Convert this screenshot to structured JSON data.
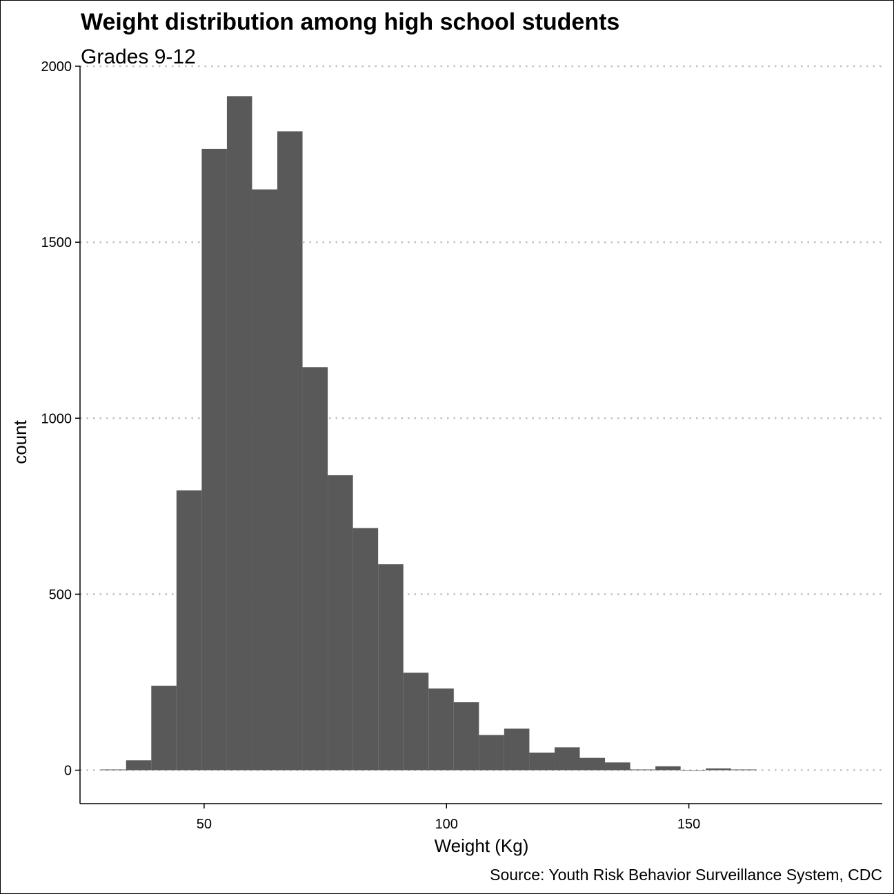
{
  "chart_data": {
    "type": "bar",
    "title": "Weight distribution among high school students",
    "subtitle": "Grades 9-12",
    "xlabel": "Weight (Kg)",
    "ylabel": "count",
    "caption": "Source: Youth Risk Behavior Surveillance System, CDC",
    "xlim": [
      24.4,
      189.9
    ],
    "ylim": [
      -95,
      2000
    ],
    "x_ticks": [
      50,
      100,
      150
    ],
    "y_ticks": [
      0,
      500,
      1000,
      1500,
      2000
    ],
    "grid": "horizontal-dotted",
    "bin_width": 5.2,
    "bins": [
      {
        "x0": 28.7,
        "x1": 33.9,
        "count": 2
      },
      {
        "x0": 33.9,
        "x1": 39.1,
        "count": 28
      },
      {
        "x0": 39.1,
        "x1": 44.3,
        "count": 240
      },
      {
        "x0": 44.3,
        "x1": 49.5,
        "count": 795
      },
      {
        "x0": 49.5,
        "x1": 54.7,
        "count": 1765
      },
      {
        "x0": 54.7,
        "x1": 59.9,
        "count": 1915
      },
      {
        "x0": 59.9,
        "x1": 65.1,
        "count": 1650
      },
      {
        "x0": 65.1,
        "x1": 70.3,
        "count": 1815
      },
      {
        "x0": 70.3,
        "x1": 75.5,
        "count": 1145
      },
      {
        "x0": 75.5,
        "x1": 80.7,
        "count": 838
      },
      {
        "x0": 80.7,
        "x1": 85.9,
        "count": 688
      },
      {
        "x0": 85.9,
        "x1": 91.1,
        "count": 585
      },
      {
        "x0": 91.1,
        "x1": 96.3,
        "count": 277
      },
      {
        "x0": 96.3,
        "x1": 101.5,
        "count": 232
      },
      {
        "x0": 101.5,
        "x1": 106.7,
        "count": 193
      },
      {
        "x0": 106.7,
        "x1": 111.9,
        "count": 100
      },
      {
        "x0": 111.9,
        "x1": 117.1,
        "count": 118
      },
      {
        "x0": 117.1,
        "x1": 122.3,
        "count": 50
      },
      {
        "x0": 122.3,
        "x1": 127.5,
        "count": 65
      },
      {
        "x0": 127.5,
        "x1": 132.7,
        "count": 35
      },
      {
        "x0": 132.7,
        "x1": 137.9,
        "count": 22
      },
      {
        "x0": 137.9,
        "x1": 143.1,
        "count": 2
      },
      {
        "x0": 143.1,
        "x1": 148.3,
        "count": 11
      },
      {
        "x0": 148.3,
        "x1": 153.5,
        "count": 0
      },
      {
        "x0": 153.5,
        "x1": 158.7,
        "count": 5
      },
      {
        "x0": 158.7,
        "x1": 163.9,
        "count": 2
      }
    ],
    "bar_color": "#595959",
    "grid_color": "#bfbfbf"
  }
}
